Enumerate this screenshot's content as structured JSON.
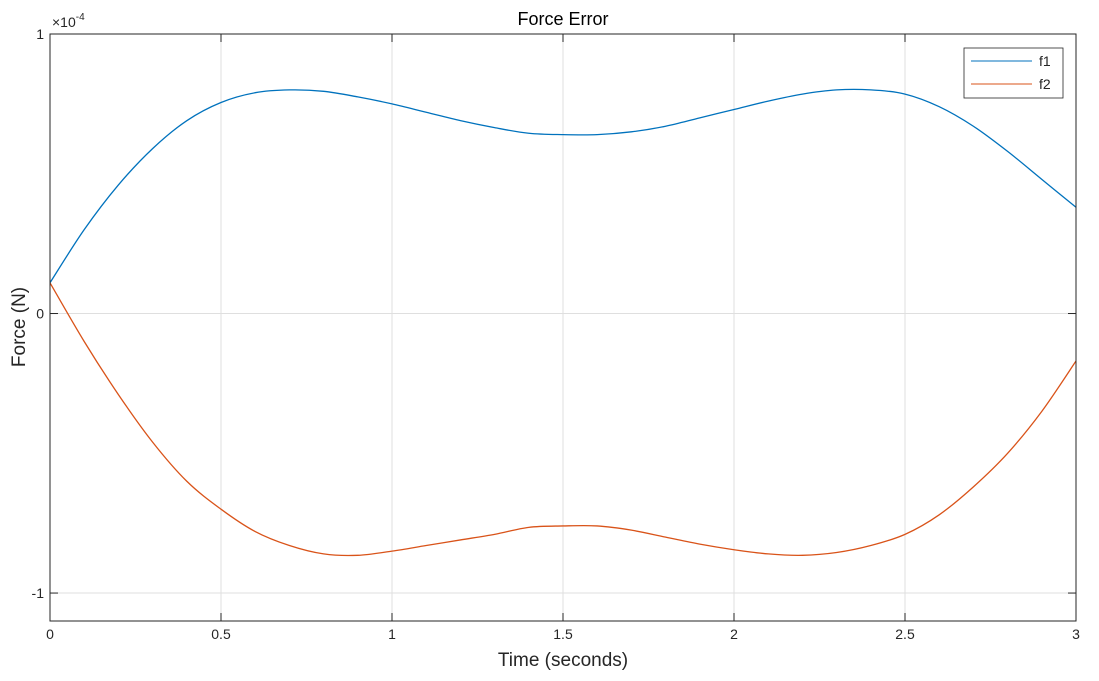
{
  "chart_data": {
    "type": "line",
    "title": "Force Error",
    "xlabel": "Time (seconds)",
    "ylabel": "Force (N)",
    "y_exponent_label": "×10",
    "y_exponent_power": "-4",
    "y_multiplier": 0.0001,
    "xlim": [
      0,
      3
    ],
    "ylim": [
      -1.1,
      1.0
    ],
    "x_ticks": [
      0,
      0.5,
      1,
      1.5,
      2,
      2.5,
      3
    ],
    "x_tick_labels": [
      "0",
      "0.5",
      "1",
      "1.5",
      "2",
      "2.5",
      "3"
    ],
    "y_ticks": [
      -1,
      0,
      1
    ],
    "y_tick_labels": [
      "-1",
      "0",
      "1"
    ],
    "grid": true,
    "legend_position": "top-right",
    "series": [
      {
        "name": "f1",
        "color": "#0072BD",
        "x": [
          0,
          0.1,
          0.2,
          0.3,
          0.4,
          0.5,
          0.6,
          0.7,
          0.8,
          0.9,
          1.0,
          1.1,
          1.2,
          1.3,
          1.4,
          1.5,
          1.6,
          1.7,
          1.8,
          1.9,
          2.0,
          2.1,
          2.2,
          2.3,
          2.4,
          2.5,
          2.6,
          2.7,
          2.8,
          2.9,
          3.0
        ],
        "y": [
          0.11,
          0.3,
          0.46,
          0.59,
          0.69,
          0.755,
          0.79,
          0.8,
          0.795,
          0.775,
          0.75,
          0.72,
          0.69,
          0.665,
          0.645,
          0.64,
          0.64,
          0.65,
          0.67,
          0.7,
          0.73,
          0.76,
          0.785,
          0.8,
          0.8,
          0.785,
          0.74,
          0.67,
          0.58,
          0.48,
          0.38
        ]
      },
      {
        "name": "f2",
        "color": "#D95319",
        "x": [
          0,
          0.1,
          0.2,
          0.3,
          0.4,
          0.5,
          0.6,
          0.7,
          0.8,
          0.9,
          1.0,
          1.1,
          1.2,
          1.3,
          1.4,
          1.5,
          1.6,
          1.7,
          1.8,
          1.9,
          2.0,
          2.1,
          2.2,
          2.3,
          2.4,
          2.5,
          2.6,
          2.7,
          2.8,
          2.9,
          3.0
        ],
        "y": [
          0.11,
          -0.1,
          -0.29,
          -0.46,
          -0.6,
          -0.7,
          -0.78,
          -0.83,
          -0.86,
          -0.865,
          -0.85,
          -0.83,
          -0.81,
          -0.79,
          -0.765,
          -0.76,
          -0.76,
          -0.775,
          -0.8,
          -0.825,
          -0.845,
          -0.86,
          -0.865,
          -0.855,
          -0.83,
          -0.79,
          -0.72,
          -0.62,
          -0.5,
          -0.35,
          -0.17
        ]
      }
    ]
  }
}
